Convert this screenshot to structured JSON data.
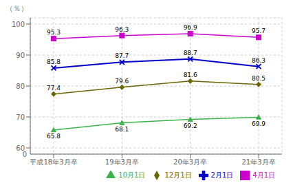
{
  "chart_data": {
    "type": "line",
    "ylabel": "（％）",
    "categories": [
      "平成18年3月卒",
      "19年3月卒",
      "20年3月卒",
      "21年3月卒"
    ],
    "series": [
      {
        "name": "10月1日",
        "color": "#3cb34a",
        "marker": "triangle",
        "values": [
          65.8,
          68.1,
          69.2,
          69.9
        ]
      },
      {
        "name": "12月1日",
        "color": "#6b6600",
        "marker": "diamond",
        "values": [
          77.4,
          79.6,
          81.6,
          80.5
        ]
      },
      {
        "name": "2月1日",
        "color": "#0000cc",
        "marker": "x",
        "values": [
          85.8,
          87.7,
          88.7,
          86.3
        ]
      },
      {
        "name": "4月1日",
        "color": "#cc00cc",
        "marker": "square",
        "values": [
          95.3,
          96.3,
          96.9,
          95.7
        ]
      }
    ],
    "ylim": [
      58,
      102
    ],
    "yticks": [
      60,
      70,
      80,
      90,
      100
    ],
    "grid": true,
    "legend": "lower right",
    "data_labels": true,
    "annotations": [
      {
        "text": "0"
      }
    ]
  }
}
